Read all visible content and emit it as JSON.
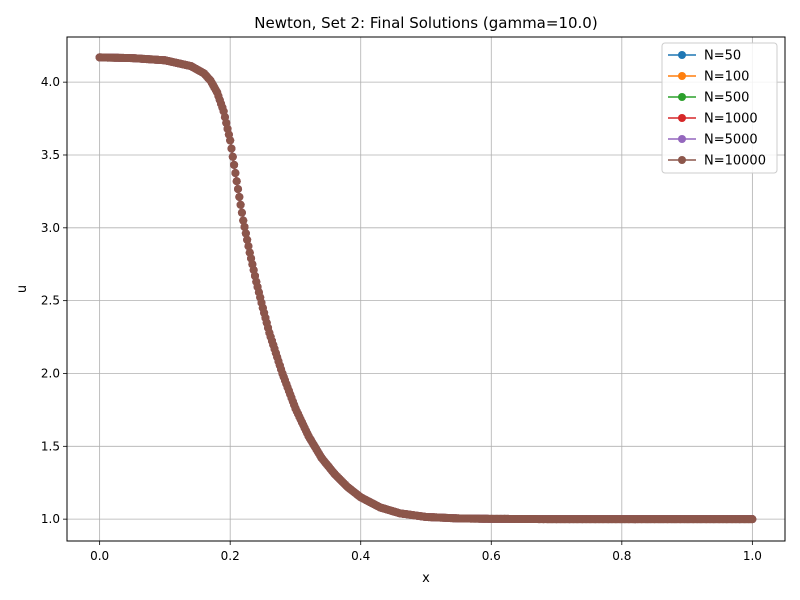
{
  "chart_data": {
    "type": "line",
    "title": "Newton, Set 2: Final Solutions (gamma=10.0)",
    "xlabel": "x",
    "ylabel": "u",
    "xlim": [
      -0.05,
      1.05
    ],
    "ylim": [
      0.85,
      4.31
    ],
    "xticks": [
      "0.0",
      "0.2",
      "0.4",
      "0.6",
      "0.8",
      "1.0"
    ],
    "yticks": [
      "1.0",
      "1.5",
      "2.0",
      "2.5",
      "3.0",
      "3.5",
      "4.0"
    ],
    "grid": true,
    "legend_position": "top-right",
    "x_start": 0.0,
    "x_end": 1.0,
    "curve_x": [
      0.0,
      0.05,
      0.1,
      0.12,
      0.14,
      0.16,
      0.17,
      0.18,
      0.19,
      0.2,
      0.21,
      0.22,
      0.23,
      0.24,
      0.25,
      0.26,
      0.28,
      0.3,
      0.32,
      0.34,
      0.36,
      0.38,
      0.4,
      0.43,
      0.46,
      0.5,
      0.55,
      0.6,
      0.7,
      0.8,
      0.9,
      1.0
    ],
    "curve_u": [
      4.17,
      4.165,
      4.15,
      4.13,
      4.11,
      4.06,
      4.01,
      3.93,
      3.8,
      3.6,
      3.32,
      3.05,
      2.83,
      2.63,
      2.45,
      2.28,
      2.0,
      1.76,
      1.57,
      1.42,
      1.31,
      1.22,
      1.15,
      1.08,
      1.04,
      1.015,
      1.005,
      1.002,
      1.0,
      1.0,
      1.0,
      1.0
    ],
    "series": [
      {
        "name": "N=50",
        "n": 50,
        "color": "#1f77b4"
      },
      {
        "name": "N=100",
        "n": 100,
        "color": "#ff7f0e"
      },
      {
        "name": "N=500",
        "n": 500,
        "color": "#2ca02c"
      },
      {
        "name": "N=1000",
        "n": 1000,
        "color": "#d62728"
      },
      {
        "name": "N=5000",
        "n": 5000,
        "color": "#9467bd"
      },
      {
        "name": "N=10000",
        "n": 10000,
        "color": "#8c564b"
      }
    ]
  }
}
